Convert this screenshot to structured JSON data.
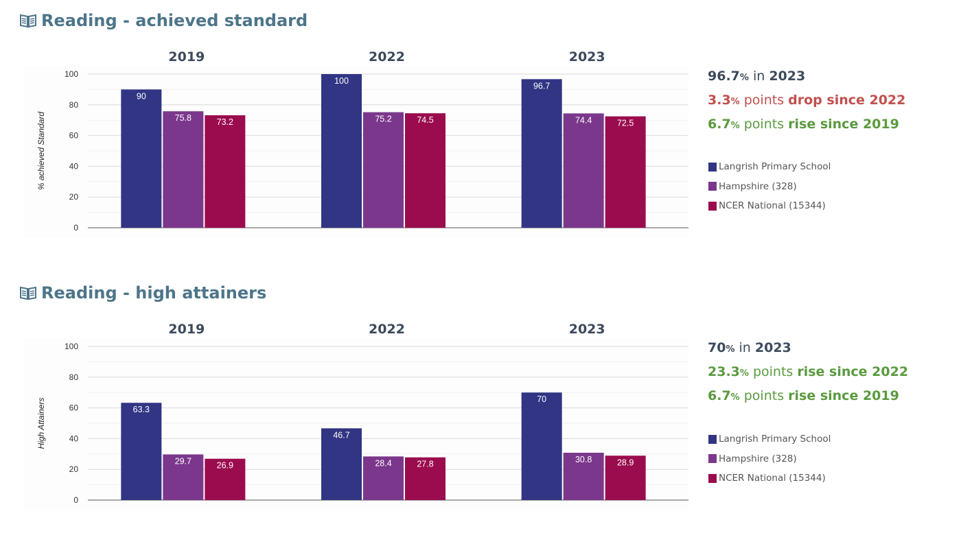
{
  "colors": {
    "title": "#4d7589",
    "neutral": "#3d4a5c",
    "drop": "#c0504d",
    "rise": "#5a9a3e",
    "series": [
      "#313584",
      "#7b378c",
      "#9b0c4e"
    ]
  },
  "sections": [
    {
      "title": "Reading - achieved standard",
      "icon": "book-icon",
      "summary": [
        {
          "value": "96.7",
          "unit": "%",
          "mid": " in ",
          "tail": "2023",
          "color": "neutral"
        },
        {
          "value": "3.3",
          "unit": "%",
          "mid": " points ",
          "tail": "drop since 2022",
          "color": "drop"
        },
        {
          "value": "6.7",
          "unit": "%",
          "mid": " points ",
          "tail": "rise since 2019",
          "color": "rise"
        }
      ],
      "legend": [
        "Langrish Primary School",
        "Hampshire (328)",
        "NCER National (15344)"
      ]
    },
    {
      "title": "Reading - high attainers",
      "icon": "book-icon",
      "summary": [
        {
          "value": "70",
          "unit": "%",
          "mid": " in ",
          "tail": "2023",
          "color": "neutral"
        },
        {
          "value": "23.3",
          "unit": "%",
          "mid": " points ",
          "tail": "rise since 2022",
          "color": "rise"
        },
        {
          "value": "6.7",
          "unit": "%",
          "mid": " points ",
          "tail": "rise since 2019",
          "color": "rise"
        }
      ],
      "legend": [
        "Langrish Primary School",
        "Hampshire (328)",
        "NCER National (15344)"
      ]
    }
  ],
  "chart_data": [
    {
      "type": "bar",
      "categories": [
        "2019",
        "2022",
        "2023"
      ],
      "ylabel": "% achieved Standard",
      "ylim": [
        0,
        100
      ],
      "yticks": [
        0,
        20,
        40,
        60,
        80,
        100
      ],
      "grid": true,
      "legend_position": "right",
      "series": [
        {
          "name": "Langrish Primary School",
          "values": [
            90,
            100,
            96.7
          ]
        },
        {
          "name": "Hampshire (328)",
          "values": [
            75.8,
            75.2,
            74.4
          ]
        },
        {
          "name": "NCER National (15344)",
          "values": [
            73.2,
            74.5,
            72.5
          ]
        }
      ]
    },
    {
      "type": "bar",
      "categories": [
        "2019",
        "2022",
        "2023"
      ],
      "ylabel": "High Attainers",
      "ylim": [
        0,
        100
      ],
      "yticks": [
        0,
        20,
        40,
        60,
        80,
        100
      ],
      "grid": true,
      "legend_position": "right",
      "series": [
        {
          "name": "Langrish Primary School",
          "values": [
            63.3,
            46.7,
            70
          ]
        },
        {
          "name": "Hampshire (328)",
          "values": [
            29.7,
            28.4,
            30.8
          ]
        },
        {
          "name": "NCER National (15344)",
          "values": [
            26.9,
            27.8,
            28.9
          ]
        }
      ]
    }
  ]
}
